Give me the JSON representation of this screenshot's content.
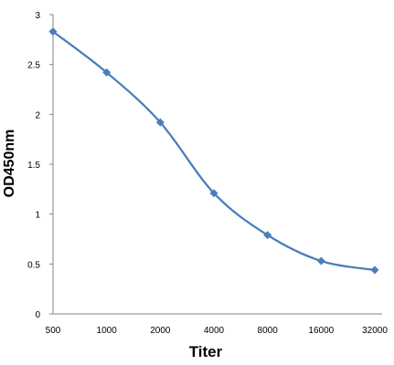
{
  "chart_data": {
    "type": "line",
    "title": "",
    "xlabel": "Titer",
    "ylabel": "OD450nm",
    "categories": [
      "500",
      "1000",
      "2000",
      "4000",
      "8000",
      "16000",
      "32000"
    ],
    "series": [
      {
        "values": [
          2.83,
          2.42,
          1.92,
          1.21,
          0.79,
          0.53,
          0.44
        ]
      }
    ],
    "ylim": [
      0,
      3
    ],
    "yticks": [
      "0",
      "0.5",
      "1",
      "1.5",
      "2",
      "2.5",
      "3"
    ],
    "grid": false,
    "legend": "none",
    "colors": {
      "line": "#4a7ebb",
      "marker": "#4a7ebb",
      "axis": "#868686"
    }
  }
}
